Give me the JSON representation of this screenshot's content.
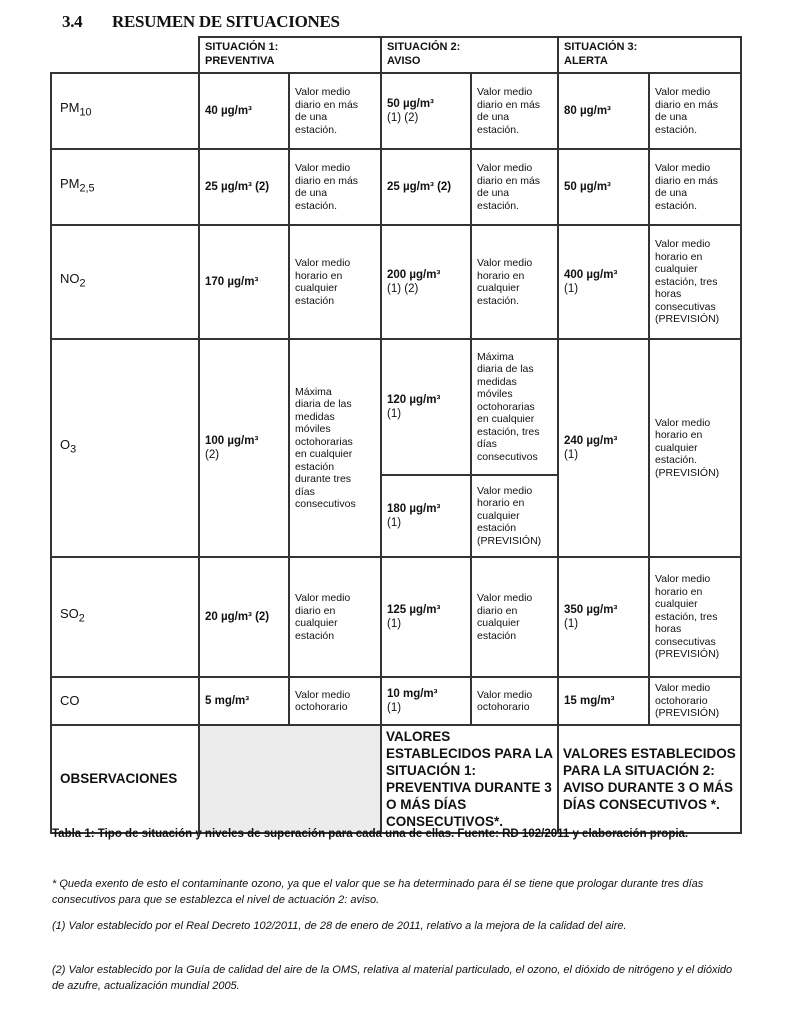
{
  "section": {
    "number": "3.4",
    "title": "RESUMEN DE SITUACIONES"
  },
  "headers": [
    "SITUACIÓN 1:\nPREVENTIVA",
    "SITUACIÓN 2:\nAVISO",
    "SITUACIÓN 3:\nALERTA"
  ],
  "rows": {
    "pm10": {
      "name": "PM",
      "sub": "10",
      "s1_val": "40 µg/m³",
      "s1_desc": "Valor medio\ndiario en más\nde una\nestación.",
      "s2_val": "50 µg/m³",
      "s2_ref": "(1) (2)",
      "s2_desc": "Valor medio\ndiario en más\nde una\nestación.",
      "s3_val": "80 µg/m³",
      "s3_desc": "Valor medio\ndiario en más\nde una\nestación."
    },
    "pm25": {
      "name": "PM",
      "sub": "2,5",
      "s1_val": "25 µg/m³ (2)",
      "s1_desc": "Valor medio\ndiario en más\nde una\nestación.",
      "s2_val": "25 µg/m³ (2)",
      "s2_desc": "Valor medio\ndiario en más\nde una\nestación.",
      "s3_val": "50 µg/m³",
      "s3_desc": "Valor medio\ndiario en más\nde una\nestación."
    },
    "no2": {
      "name": "NO",
      "sub": "2",
      "s1_val": "170 µg/m³",
      "s1_desc": "Valor medio\nhorario en\ncualquier\nestación",
      "s2_val": "200 µg/m³",
      "s2_ref": "(1) (2)",
      "s2_desc": "Valor medio\nhorario en\ncualquier\nestación.",
      "s3_val": "400 µg/m³",
      "s3_ref": "(1)",
      "s3_desc": "Valor medio\nhorario en\ncualquier\nestación, tres\nhoras\nconsecutivas\n(PREVISIÓN)"
    },
    "o3": {
      "name": "O",
      "sub": "3",
      "s1_val": "100 µg/m³",
      "s1_ref": "(2)",
      "s1_desc": "Máxima\ndiaria de las\nmedidas\nmóviles\noctohorarias\nen cualquier\nestación\ndurante tres\ndías\nconsecutivos",
      "s2a_val": "120 µg/m³",
      "s2a_ref": "(1)",
      "s2a_desc": "Máxima\ndiaria de las\nmedidas\nmóviles\noctohorarias\nen cualquier\nestación, tres\ndías\nconsecutivos",
      "s2b_val": "180 µg/m³",
      "s2b_ref": "(1)",
      "s2b_desc": "Valor medio\nhorario en\ncualquier\nestación\n(PREVISIÓN)",
      "s3_val": "240 µg/m³",
      "s3_ref": "(1)",
      "s3_desc": "Valor medio\nhorario en\ncualquier\nestación.\n(PREVISIÓN)"
    },
    "so2": {
      "name": "SO",
      "sub": "2",
      "s1_val": "20 µg/m³ (2)",
      "s1_desc": "Valor medio\ndiario en\ncualquier\nestación",
      "s2_val": "125 µg/m³",
      "s2_ref": "(1)",
      "s2_desc": "Valor medio\ndiario en\ncualquier\nestación",
      "s3_val": "350 µg/m³",
      "s3_ref": "(1)",
      "s3_desc": "Valor medio\nhorario en\ncualquier\nestación, tres\nhoras\nconsecutivas\n(PREVISIÓN)"
    },
    "co": {
      "name": "CO",
      "s1_val": "5 mg/m³",
      "s1_desc": "Valor medio\noctohorario",
      "s2_val": "10 mg/m³",
      "s2_ref": "(1)",
      "s2_desc": "Valor medio\noctohorario",
      "s3_val": "15 mg/m³",
      "s3_desc": "Valor medio\noctohorario\n(PREVISIÓN)"
    }
  },
  "observations": {
    "label": "OBSERVACIONES",
    "s2": "VALORES ESTABLECIDOS PARA LA SITUACIÓN 1: PREVENTIVA DURANTE 3 O MÁS DÍAS CONSECUTIVOS*.",
    "s3": "VALORES ESTABLECIDOS PARA LA SITUACIÓN 2: AVISO DURANTE 3 O MÁS DÍAS CONSECUTIVOS *."
  },
  "caption": "Tabla 1: Tipo de situación y niveles de superación para cada una de ellas. Fuente: RD 102/2011 y elaboración propia.",
  "notes": [
    "* Queda exento de esto el contaminante ozono, ya que el valor que se ha determinado para él se tiene que prologar durante tres días consecutivos para que se establezca el nivel de actuación 2: aviso.",
    "(1) Valor establecido por el Real Decreto 102/2011, de 28 de enero de 2011, relativo a la mejora de la calidad del aire.",
    "(2) Valor establecido por la Guía de calidad del aire de la OMS, relativa al material particulado, el ozono, el dióxido de nitrógeno y el dióxido de azufre, actualización mundial 2005."
  ]
}
